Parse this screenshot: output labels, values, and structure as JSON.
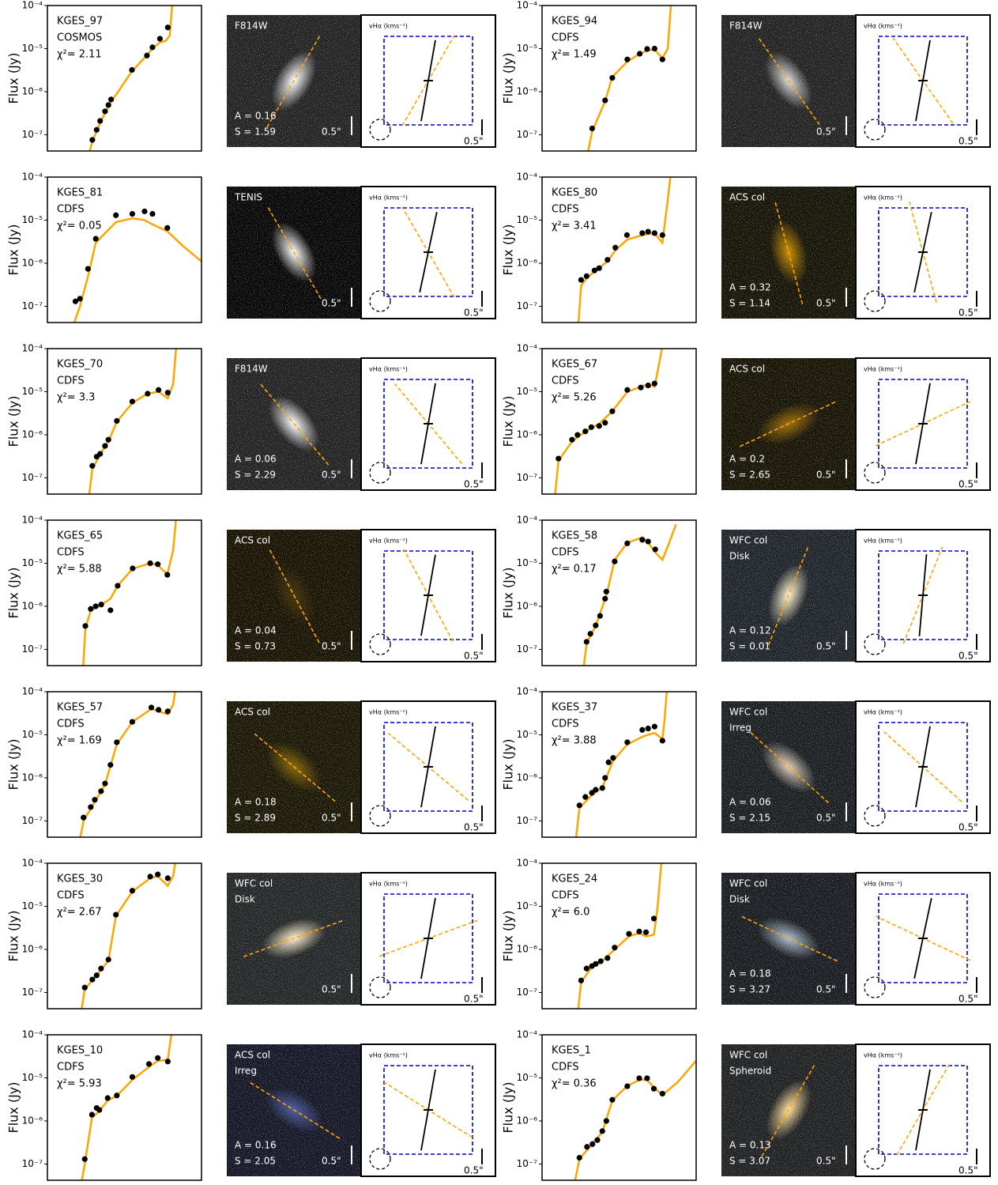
{
  "figure": {
    "ylabel": "Flux (Jy)",
    "scale_label": "0.5\"",
    "vmap_label": "vHα (kms⁻¹)",
    "xlim": [
      0.03,
      300
    ],
    "xscale": "log",
    "ylim": [
      4.2e-08,
      0.0001
    ],
    "yscale": "log",
    "yticks": [
      {
        "value": 0.0001,
        "label": "10⁻⁴"
      },
      {
        "value": 1e-05,
        "label": "10⁻⁵"
      },
      {
        "value": 1e-06,
        "label": "10⁻⁶"
      },
      {
        "value": 1e-07,
        "label": "10⁻⁷"
      }
    ],
    "point_color": "#000000",
    "model_color": "#ffa500",
    "box_color": "#0000cc"
  },
  "chart_data": [
    {
      "type": "scatter",
      "name": "KGES_97",
      "field": "COSMOS",
      "chi2": "χ²= 2.11",
      "x": [
        0.44,
        0.57,
        0.7,
        0.94,
        1.15,
        1.35,
        4.7,
        11.5,
        16,
        25,
        40
      ],
      "values": [
        7.6e-08,
        1.3e-07,
        2.1e-07,
        3.5e-07,
        4.9e-07,
        6.6e-07,
        3.2e-06,
        6.9e-06,
        1.07e-05,
        1.7e-05,
        3.1e-05
      ],
      "model_x": [
        0.3,
        0.44,
        0.7,
        1.35,
        1.9,
        4.7,
        11.5,
        16,
        25,
        35,
        45,
        55
      ],
      "model_values": [
        2e-08,
        7e-08,
        1.9e-07,
        6e-07,
        9e-07,
        3e-06,
        7e-06,
        1e-05,
        1.4e-05,
        1.5e-05,
        2e-05,
        0.0002
      ],
      "image": {
        "labels": [
          "F814W"
        ],
        "A": "A = 0.16",
        "S": "S = 1.59",
        "background": "#262626",
        "glow": "#ffffff"
      },
      "morph_pa": 30,
      "kin_pa": 10
    },
    {
      "type": "scatter",
      "name": "KGES_94",
      "field": "CDFS",
      "chi2": "χ²= 1.49",
      "x": [
        0.6,
        1.3,
        2.0,
        4.9,
        10.3,
        16,
        25,
        40
      ],
      "values": [
        1.4e-07,
        6.3e-07,
        2.1e-06,
        5.6e-06,
        7.6e-06,
        9.8e-06,
        1e-05,
        5.6e-06
      ],
      "model_x": [
        0.4,
        0.6,
        1.3,
        2.0,
        4.9,
        10,
        16,
        25,
        40,
        55,
        70
      ],
      "model_values": [
        2e-08,
        1.2e-07,
        6e-07,
        2.2e-06,
        5e-06,
        7.5e-06,
        9e-06,
        9.5e-06,
        6e-06,
        1e-05,
        0.0002
      ],
      "image": {
        "labels": [
          "F814W"
        ],
        "background": "#262626",
        "glow": "#dddddd"
      },
      "morph_pa": -35,
      "kin_pa": 10
    },
    {
      "type": "scatter",
      "name": "KGES_81",
      "field": "CDFS",
      "chi2": "χ²= 0.05",
      "x": [
        0.16,
        0.21,
        0.34,
        0.54,
        1.8,
        4.8,
        10,
        16,
        39
      ],
      "values": [
        1.3e-07,
        1.5e-07,
        7.4e-07,
        3.7e-06,
        1.3e-05,
        1.4e-05,
        1.6e-05,
        1.4e-05,
        6.6e-06
      ],
      "model_x": [
        0.12,
        0.16,
        0.21,
        0.34,
        0.54,
        1.8,
        4.8,
        10,
        16,
        39,
        100,
        300
      ],
      "model_values": [
        2e-08,
        5e-08,
        1e-07,
        5e-07,
        3e-06,
        9e-06,
        1.1e-05,
        1e-05,
        8e-06,
        5.5e-06,
        2.5e-06,
        1.1e-06
      ],
      "image": {
        "labels": [
          "TENIS"
        ],
        "background": "#0a0a0a",
        "glow": "#ffffff"
      },
      "morph_pa": -30,
      "kin_pa": 12
    },
    {
      "type": "scatter",
      "name": "KGES_80",
      "field": "CDFS",
      "chi2": "χ²= 3.41",
      "x": [
        0.31,
        0.43,
        0.69,
        0.91,
        1.5,
        2.4,
        4.8,
        12,
        17,
        25,
        40
      ],
      "values": [
        4.1e-07,
        5e-07,
        6.8e-07,
        7.7e-07,
        1.2e-06,
        2.3e-06,
        4.5e-06,
        5e-06,
        5.4e-06,
        5e-06,
        4.5e-06
      ],
      "model_x": [
        0.25,
        0.31,
        0.43,
        0.69,
        1.5,
        2.4,
        4.8,
        12,
        25,
        40,
        55,
        70
      ],
      "model_values": [
        2e-08,
        3e-07,
        4.5e-07,
        6.5e-07,
        1.1e-06,
        2e-06,
        3.5e-06,
        4.5e-06,
        5e-06,
        3e-06,
        3e-05,
        0.0002
      ],
      "image": {
        "labels": [
          "ACS col"
        ],
        "A": "A = 0.32",
        "S": "S = 1.14",
        "background": "#19160a",
        "glow": "#c8900a"
      },
      "morph_pa": -15,
      "kin_pa": 12
    },
    {
      "type": "scatter",
      "name": "KGES_70",
      "field": "CDFS",
      "chi2": "χ²= 3.3",
      "x": [
        0.44,
        0.57,
        0.7,
        0.94,
        1.15,
        1.9,
        4.8,
        12,
        23,
        40
      ],
      "values": [
        1.9e-07,
        3.1e-07,
        3.6e-07,
        5.5e-07,
        7.7e-07,
        2.1e-06,
        5.9e-06,
        9e-06,
        1.1e-05,
        9.5e-06
      ],
      "model_x": [
        0.35,
        0.44,
        0.7,
        1.15,
        1.9,
        4.8,
        12,
        23,
        40,
        55,
        70
      ],
      "model_values": [
        3e-08,
        1.6e-07,
        3.5e-07,
        7e-07,
        2e-06,
        5.5e-06,
        9e-06,
        1e-05,
        7e-06,
        1.5e-05,
        0.0002
      ],
      "image": {
        "labels": [
          "F814W"
        ],
        "A": "A = 0.06",
        "S": "S = 2.29",
        "background": "#262626",
        "glow": "#ffffff"
      },
      "morph_pa": -40,
      "kin_pa": 10
    },
    {
      "type": "scatter",
      "name": "KGES_67",
      "field": "CDFS",
      "chi2": "χ²= 5.26",
      "x": [
        0.08,
        0.18,
        0.25,
        0.4,
        0.57,
        0.91,
        1.3,
        2.0,
        4.9,
        11,
        17,
        25
      ],
      "values": [
        2.8e-07,
        7.7e-07,
        9.9e-07,
        1.2e-06,
        1.5e-06,
        1.6e-06,
        1.9e-06,
        3.5e-06,
        1.1e-05,
        1.25e-05,
        1.4e-05,
        1.55e-05
      ],
      "model_x": [
        0.06,
        0.08,
        0.18,
        0.4,
        0.91,
        2.0,
        4.9,
        11,
        17,
        25,
        30,
        45
      ],
      "model_values": [
        2e-08,
        2.5e-07,
        7e-07,
        1.2e-06,
        1.8e-06,
        3.5e-06,
        1e-05,
        1.3e-05,
        1.5e-05,
        1.3e-05,
        3e-05,
        0.0002
      ],
      "image": {
        "labels": [
          "ACS col"
        ],
        "A": "A = 0.2",
        "S": "S = 2.65",
        "background": "#1a1708",
        "glow": "#a07010"
      },
      "morph_pa": 65,
      "kin_pa": 10
    },
    {
      "type": "scatter",
      "name": "KGES_65",
      "field": "CDFS",
      "chi2": "χ²= 5.88",
      "x": [
        0.29,
        0.4,
        0.54,
        0.75,
        1.3,
        2.0,
        4.9,
        14,
        22,
        39
      ],
      "values": [
        3.5e-07,
        8.7e-07,
        1e-06,
        1.1e-06,
        8.1e-07,
        3e-06,
        7.6e-06,
        1e-05,
        9.5e-06,
        5.4e-06
      ],
      "model_x": [
        0.25,
        0.29,
        0.4,
        0.75,
        1.3,
        2.0,
        4.9,
        14,
        22,
        39,
        55,
        70
      ],
      "model_values": [
        3e-08,
        3e-07,
        8e-07,
        1.1e-06,
        1.5e-06,
        3e-06,
        7.5e-06,
        1e-05,
        9e-06,
        5.5e-06,
        2e-05,
        0.0002
      ],
      "image": {
        "labels": [
          "ACS col"
        ],
        "A": "A = 0.04",
        "S": "S = 0.73",
        "background": "#1c1606",
        "glow": "#4a3a10"
      },
      "morph_pa": -28,
      "kin_pa": 10
    },
    {
      "type": "scatter",
      "name": "KGES_58",
      "field": "CDFS",
      "chi2": "χ²= 0.17",
      "x": [
        0.43,
        0.54,
        0.74,
        0.96,
        1.3,
        1.4,
        2.3,
        4.9,
        12,
        17,
        26
      ],
      "values": [
        1.5e-07,
        2.3e-07,
        3.6e-07,
        6e-07,
        1.5e-06,
        2.2e-06,
        1.1e-05,
        2.9e-05,
        3.5e-05,
        3.2e-05,
        2.1e-05
      ],
      "model_x": [
        0.35,
        0.43,
        0.74,
        1.4,
        2.3,
        4.9,
        12,
        17,
        26,
        40,
        60,
        90
      ],
      "model_values": [
        3e-08,
        1.4e-07,
        3.5e-07,
        1.8e-06,
        1.2e-05,
        3e-05,
        4e-05,
        3e-05,
        1.8e-05,
        1.2e-05,
        3e-05,
        8e-05
      ],
      "image": {
        "labels": [
          "WFC col",
          "Disk"
        ],
        "A": "A = 0.12",
        "S": "S = 0.01",
        "background": "#22282e",
        "glow": "#fff2d0"
      },
      "morph_pa": 22,
      "kin_pa": 5
    },
    {
      "type": "scatter",
      "name": "KGES_57",
      "field": "CDFS",
      "chi2": "χ²= 1.69",
      "x": [
        0.26,
        0.4,
        0.51,
        0.74,
        0.94,
        1.3,
        1.9,
        4.8,
        15,
        23,
        40
      ],
      "values": [
        1.2e-07,
        2.1e-07,
        3.1e-07,
        4.9e-07,
        7.4e-07,
        2e-06,
        6.7e-06,
        2e-05,
        4.3e-05,
        3.8e-05,
        3.5e-05
      ],
      "model_x": [
        0.2,
        0.26,
        0.51,
        0.94,
        1.9,
        4.8,
        15,
        23,
        40,
        55,
        70
      ],
      "model_values": [
        3e-08,
        1e-07,
        2.8e-07,
        7e-07,
        6e-06,
        2e-05,
        4e-05,
        3.5e-05,
        3e-05,
        5e-05,
        0.0002
      ],
      "image": {
        "labels": [
          "ACS col"
        ],
        "A": "A = 0.18",
        "S": "S = 2.89",
        "background": "#1e1a08",
        "glow": "#8a6a10"
      },
      "morph_pa": -50,
      "kin_pa": 10
    },
    {
      "type": "scatter",
      "name": "KGES_37",
      "field": "CDFS",
      "chi2": "χ²= 3.88",
      "x": [
        0.28,
        0.4,
        0.59,
        0.74,
        1.1,
        1.3,
        1.6,
        2.1,
        4.9,
        12,
        17,
        25,
        40
      ],
      "values": [
        2.3e-07,
        3.6e-07,
        4.5e-07,
        5.3e-07,
        5.8e-07,
        1e-06,
        2.3e-06,
        2.9e-06,
        6.7e-06,
        1.3e-05,
        1.4e-05,
        1.55e-05,
        7.3e-06
      ],
      "model_x": [
        0.22,
        0.28,
        0.59,
        1.1,
        2.1,
        4.9,
        12,
        17,
        25,
        40,
        45,
        55
      ],
      "model_values": [
        3e-08,
        2e-07,
        4e-07,
        6e-07,
        2.5e-06,
        6e-06,
        9e-06,
        1e-05,
        1.1e-05,
        8e-06,
        2e-05,
        0.0002
      ],
      "image": {
        "labels": [
          "WFC col",
          "Irreg"
        ],
        "A": "A = 0.06",
        "S": "S = 2.15",
        "background": "#1e2225",
        "glow": "#e0d0c0"
      },
      "morph_pa": -48,
      "kin_pa": 10
    },
    {
      "type": "scatter",
      "name": "KGES_30",
      "field": "CDFS",
      "chi2": "χ²= 2.67",
      "x": [
        0.28,
        0.44,
        0.57,
        0.74,
        1.15,
        1.8,
        4.8,
        14,
        22,
        40
      ],
      "values": [
        1.3e-07,
        2e-07,
        2.5e-07,
        3.6e-07,
        5.8e-07,
        6.4e-06,
        2.3e-05,
        4.9e-05,
        5.5e-05,
        4.5e-05
      ],
      "model_x": [
        0.22,
        0.28,
        0.57,
        1.15,
        1.8,
        4.8,
        14,
        22,
        40,
        55,
        70
      ],
      "model_values": [
        3e-08,
        1.2e-07,
        2.5e-07,
        5.5e-07,
        6e-06,
        2.2e-05,
        4.5e-05,
        5e-05,
        3e-05,
        5e-05,
        0.0002
      ],
      "image": {
        "labels": [
          "WFC col",
          "Disk"
        ],
        "background": "#262a2a",
        "glow": "#fff0d0"
      },
      "morph_pa": 70,
      "kin_pa": 10
    },
    {
      "type": "scatter",
      "name": "KGES_24",
      "field": "CDFS",
      "chi2": "χ²= 6.0",
      "x": [
        0.31,
        0.43,
        0.59,
        0.74,
        1.0,
        1.5,
        2.3,
        5.4,
        10,
        15,
        24
      ],
      "values": [
        1.9e-07,
        3.6e-07,
        4.1e-07,
        4.6e-07,
        5.3e-07,
        6.3e-07,
        1.1e-06,
        2.3e-06,
        2.6e-06,
        2.5e-06,
        5.2e-06
      ],
      "model_x": [
        0.25,
        0.31,
        0.59,
        1.0,
        2.3,
        5.4,
        10,
        15,
        24,
        30,
        40
      ],
      "model_values": [
        3e-08,
        1.7e-07,
        4e-07,
        5e-07,
        1e-06,
        2e-06,
        2.4e-06,
        2e-06,
        2.2e-06,
        1e-05,
        0.0002
      ],
      "image": {
        "labels": [
          "WFC col",
          "Disk"
        ],
        "A": "A = 0.18",
        "S": "S = 3.27",
        "background": "#1c2024",
        "glow": "#b0c0d0"
      },
      "morph_pa": -65,
      "kin_pa": 12
    },
    {
      "type": "scatter",
      "name": "KGES_10",
      "field": "CDFS",
      "chi2": "χ²= 5.93",
      "x": [
        0.28,
        0.43,
        0.57,
        0.67,
        1.1,
        1.9,
        4.8,
        13,
        22,
        40
      ],
      "values": [
        1.3e-07,
        1.4e-06,
        2e-06,
        1.8e-06,
        3.4e-06,
        3.9e-06,
        1.05e-05,
        2.1e-05,
        2.9e-05,
        2.4e-05
      ],
      "model_x": [
        0.22,
        0.28,
        0.43,
        0.67,
        1.1,
        1.9,
        4.8,
        13,
        22,
        40,
        55
      ],
      "model_values": [
        3e-08,
        1e-07,
        1.2e-06,
        1.7e-06,
        3e-06,
        3.8e-06,
        9e-06,
        1.8e-05,
        2.5e-05,
        2.6e-05,
        0.0002
      ],
      "image": {
        "labels": [
          "ACS col",
          "Irreg"
        ],
        "A": "A = 0.16",
        "S": "S = 2.05",
        "background": "#181a2a",
        "glow": "#5060a0"
      },
      "morph_pa": -58,
      "kin_pa": 10
    },
    {
      "type": "scatter",
      "name": "KGES_1",
      "field": "CDFS",
      "chi2": "χ²= 0.36",
      "x": [
        0.28,
        0.44,
        0.61,
        0.82,
        1.1,
        1.4,
        2.0,
        4.9,
        10,
        16,
        24,
        40
      ],
      "values": [
        1.4e-07,
        2.5e-07,
        2.9e-07,
        3.6e-07,
        5.8e-07,
        1e-06,
        3.1e-06,
        6.4e-06,
        9.8e-06,
        9.8e-06,
        5.6e-06,
        4.3e-06
      ],
      "model_x": [
        0.2,
        0.28,
        0.61,
        1.1,
        2.0,
        4.9,
        10,
        16,
        24,
        40,
        100,
        300
      ],
      "model_values": [
        3e-08,
        1.3e-07,
        3e-07,
        5.5e-07,
        3e-06,
        6.5e-06,
        9e-06,
        9e-06,
        6e-06,
        4e-06,
        8e-06,
        2.5e-05
      ],
      "image": {
        "labels": [
          "WFC col",
          "Spheroid"
        ],
        "A": "A = 0.13",
        "S": "S = 3.07",
        "background": "#222426",
        "glow": "#ffe0a0"
      },
      "morph_pa": 30,
      "kin_pa": 10
    }
  ]
}
